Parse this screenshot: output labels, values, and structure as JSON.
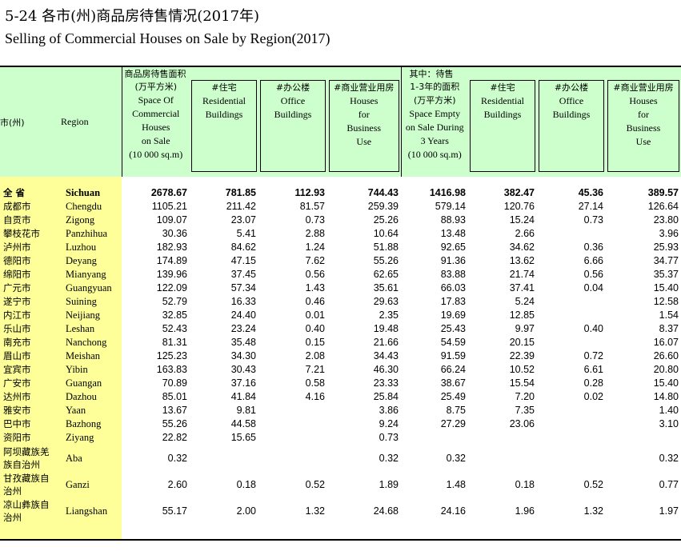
{
  "title_cn": "5-24 各市(州)商品房待售情况(2017年)",
  "title_en": "Selling of Commercial Houses on Sale by Region(2017)",
  "header": {
    "col_city": "市(州)",
    "col_region": "Region",
    "group1_label": "商品房待售面积",
    "group2_label": "其中：待售",
    "c1": [
      "(万平方米)",
      "Space Of",
      "Commercial",
      "Houses",
      "on Sale",
      "(10 000 sq.m)"
    ],
    "c2": [
      "#住宅",
      "Residential",
      "Buildings"
    ],
    "c3": [
      "#办公楼",
      "Office",
      "Buildings"
    ],
    "c4": [
      "#商业营业用房",
      "Houses",
      "for",
      "Business",
      "Use"
    ],
    "c5": [
      "1-3年的面积",
      "(万平方米)",
      "Space Empty",
      "on Sale During",
      "3 Years",
      "(10 000 sq.m)"
    ],
    "c6": [
      "#住宅",
      "Residential",
      "Buildings"
    ],
    "c7": [
      "#办公楼",
      "Office",
      "Buildings"
    ],
    "c8": [
      "#商业营业用房",
      "Houses",
      "for",
      "Business",
      "Use"
    ]
  },
  "rows": [
    {
      "city": "全  省",
      "region": "Sichuan",
      "v": [
        "2678.67",
        "781.85",
        "112.93",
        "744.43",
        "1416.98",
        "382.47",
        "45.36",
        "389.57"
      ],
      "bold": true
    },
    {
      "city": "成都市",
      "region": "Chengdu",
      "v": [
        "1105.21",
        "211.42",
        "81.57",
        "259.39",
        "579.14",
        "120.76",
        "27.14",
        "126.64"
      ]
    },
    {
      "city": "自贡市",
      "region": "Zigong",
      "v": [
        "109.07",
        "23.07",
        "0.73",
        "25.26",
        "88.93",
        "15.24",
        "0.73",
        "23.80"
      ]
    },
    {
      "city": "攀枝花市",
      "region": "Panzhihua",
      "v": [
        "30.36",
        "5.41",
        "2.88",
        "10.64",
        "13.48",
        "2.66",
        "",
        "3.96"
      ]
    },
    {
      "city": "泸州市",
      "region": "Luzhou",
      "v": [
        "182.93",
        "84.62",
        "1.24",
        "51.88",
        "92.65",
        "34.62",
        "0.36",
        "25.93"
      ]
    },
    {
      "city": "德阳市",
      "region": "Deyang",
      "v": [
        "174.89",
        "47.15",
        "7.62",
        "55.26",
        "91.36",
        "13.62",
        "6.66",
        "34.77"
      ]
    },
    {
      "city": "绵阳市",
      "region": "Mianyang",
      "v": [
        "139.96",
        "37.45",
        "0.56",
        "62.65",
        "83.88",
        "21.74",
        "0.56",
        "35.37"
      ]
    },
    {
      "city": "广元市",
      "region": "Guangyuan",
      "v": [
        "122.09",
        "57.34",
        "1.43",
        "35.61",
        "66.03",
        "37.41",
        "0.04",
        "15.40"
      ]
    },
    {
      "city": "遂宁市",
      "region": "Suining",
      "v": [
        "52.79",
        "16.33",
        "0.46",
        "29.63",
        "17.83",
        "5.24",
        "",
        "12.58"
      ]
    },
    {
      "city": "内江市",
      "region": "Neijiang",
      "v": [
        "32.85",
        "24.40",
        "0.01",
        "2.35",
        "19.69",
        "12.85",
        "",
        "1.54"
      ]
    },
    {
      "city": "乐山市",
      "region": "Leshan",
      "v": [
        "52.43",
        "23.24",
        "0.40",
        "19.48",
        "25.43",
        "9.97",
        "0.40",
        "8.37"
      ]
    },
    {
      "city": "南充市",
      "region": "Nanchong",
      "v": [
        "81.31",
        "35.48",
        "0.15",
        "21.66",
        "54.59",
        "20.15",
        "",
        "16.07"
      ]
    },
    {
      "city": "眉山市",
      "region": "Meishan",
      "v": [
        "125.23",
        "34.30",
        "2.08",
        "34.43",
        "91.59",
        "22.39",
        "0.72",
        "26.60"
      ]
    },
    {
      "city": "宜宾市",
      "region": "Yibin",
      "v": [
        "163.83",
        "30.43",
        "7.21",
        "46.30",
        "66.24",
        "10.52",
        "6.61",
        "20.80"
      ]
    },
    {
      "city": "广安市",
      "region": "Guangan",
      "v": [
        "70.89",
        "37.16",
        "0.58",
        "23.33",
        "38.67",
        "15.54",
        "0.28",
        "15.40"
      ]
    },
    {
      "city": "达州市",
      "region": "Dazhou",
      "v": [
        "85.01",
        "41.84",
        "4.16",
        "25.84",
        "25.49",
        "7.20",
        "0.02",
        "14.80"
      ]
    },
    {
      "city": "雅安市",
      "region": "Yaan",
      "v": [
        "13.67",
        "9.81",
        "",
        "3.86",
        "8.75",
        "7.35",
        "",
        "1.40"
      ]
    },
    {
      "city": "巴中市",
      "region": "Bazhong",
      "v": [
        "55.26",
        "44.58",
        "",
        "9.24",
        "27.29",
        "23.06",
        "",
        "3.10"
      ]
    },
    {
      "city": "资阳市",
      "region": "Ziyang",
      "v": [
        "22.82",
        "15.65",
        "",
        "0.73",
        "",
        "",
        "",
        ""
      ]
    },
    {
      "city": "阿坝藏族羌族自治州",
      "region": "Aba",
      "v": [
        "0.32",
        "",
        "",
        "0.32",
        "0.32",
        "",
        "",
        "0.32"
      ],
      "tall": true
    },
    {
      "city": "甘孜藏族自治州",
      "region": "Ganzi",
      "v": [
        "2.60",
        "0.18",
        "0.52",
        "1.89",
        "1.48",
        "0.18",
        "0.52",
        "0.77"
      ],
      "tall": true
    },
    {
      "city": "凉山彝族自治州",
      "region": "Liangshan",
      "v": [
        "55.17",
        "2.00",
        "1.32",
        "24.68",
        "24.16",
        "1.96",
        "1.32",
        "1.97"
      ],
      "tall": true
    }
  ]
}
